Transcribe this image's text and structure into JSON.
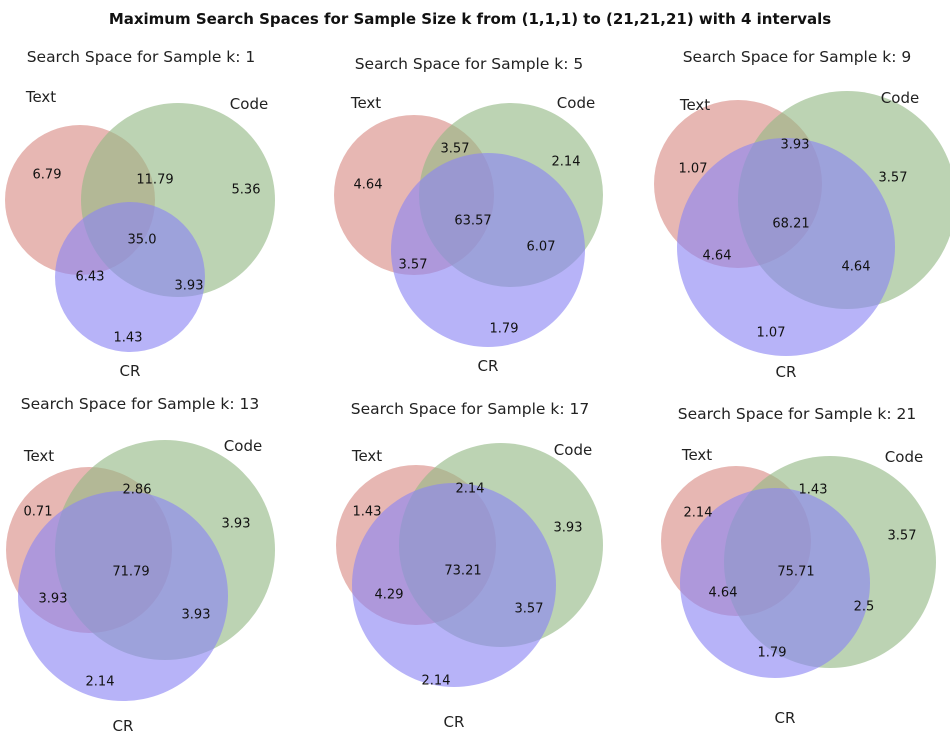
{
  "title": "Maximum Search Spaces for Sample Size k from (1,1,1) to (21,21,21) with 4 intervals",
  "colors": {
    "text_set": "#d98a84",
    "code_set": "#93b884",
    "cr_set": "#8b85f3"
  },
  "set_names": {
    "text": "Text",
    "code": "Code",
    "cr": "CR"
  },
  "panels": [
    {
      "title": "Search Space for Sample k: 1",
      "values": {
        "text_only": "6.79",
        "code_only": "5.36",
        "cr_only": "1.43",
        "text_code": "11.79",
        "text_cr": "6.43",
        "code_cr": "3.93",
        "all": "35.0"
      }
    },
    {
      "title": "Search Space for Sample k: 5",
      "values": {
        "text_only": "4.64",
        "code_only": "2.14",
        "cr_only": "1.79",
        "text_code": "3.57",
        "text_cr": "3.57",
        "code_cr": "6.07",
        "all": "63.57"
      }
    },
    {
      "title": "Search Space for Sample k: 9",
      "values": {
        "text_only": "1.07",
        "code_only": "3.57",
        "cr_only": "1.07",
        "text_code": "3.93",
        "text_cr": "4.64",
        "code_cr": "4.64",
        "all": "68.21"
      }
    },
    {
      "title": "Search Space for Sample k: 13",
      "values": {
        "text_only": "0.71",
        "code_only": "3.93",
        "cr_only": "2.14",
        "text_code": "2.86",
        "text_cr": "3.93",
        "code_cr": "3.93",
        "all": "71.79"
      }
    },
    {
      "title": "Search Space for Sample k: 17",
      "values": {
        "text_only": "1.43",
        "code_only": "3.93",
        "cr_only": "2.14",
        "text_code": "2.14",
        "text_cr": "4.29",
        "code_cr": "3.57",
        "all": "73.21"
      }
    },
    {
      "title": "Search Space for Sample k: 21",
      "values": {
        "text_only": "2.14",
        "code_only": "3.57",
        "cr_only": "1.79",
        "text_code": "1.43",
        "text_cr": "4.64",
        "code_cr": "2.5",
        "all": "75.71"
      }
    }
  ]
}
